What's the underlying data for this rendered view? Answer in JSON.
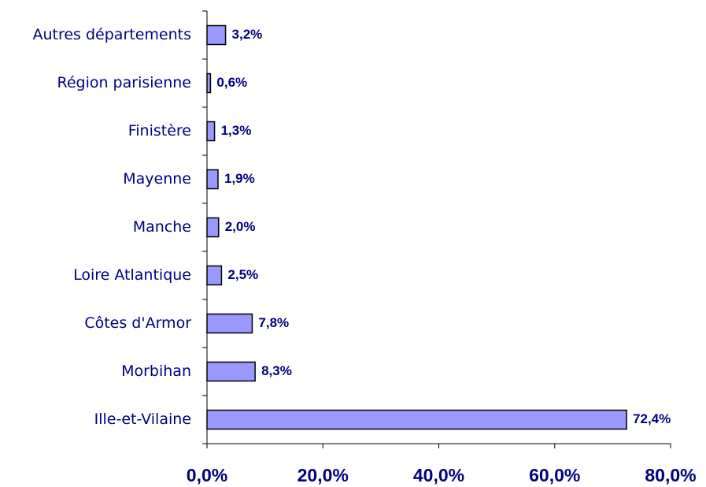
{
  "chart_data": {
    "type": "bar",
    "orientation": "horizontal",
    "categories": [
      "Autres départements",
      "Région parisienne",
      "Finistère",
      "Mayenne",
      "Manche",
      "Loire Atlantique",
      "Côtes d'Armor",
      "Morbihan",
      "Ille-et-Vilaine"
    ],
    "values": [
      3.2,
      0.6,
      1.3,
      1.9,
      2.0,
      2.5,
      7.8,
      8.3,
      72.4
    ],
    "value_labels": [
      "3,2%",
      "0,6%",
      "1,3%",
      "1,9%",
      "2,0%",
      "2,5%",
      "7,8%",
      "8,3%",
      "72,4%"
    ],
    "color": "#9999ff",
    "xlim": [
      0,
      80
    ],
    "xticks": [
      {
        "value": 0,
        "label": "0,0%"
      },
      {
        "value": 20,
        "label": "20,0%"
      },
      {
        "value": 40,
        "label": "40,0%"
      },
      {
        "value": 60,
        "label": "60,0%"
      },
      {
        "value": 80,
        "label": "80,0%"
      }
    ],
    "grid": false
  }
}
